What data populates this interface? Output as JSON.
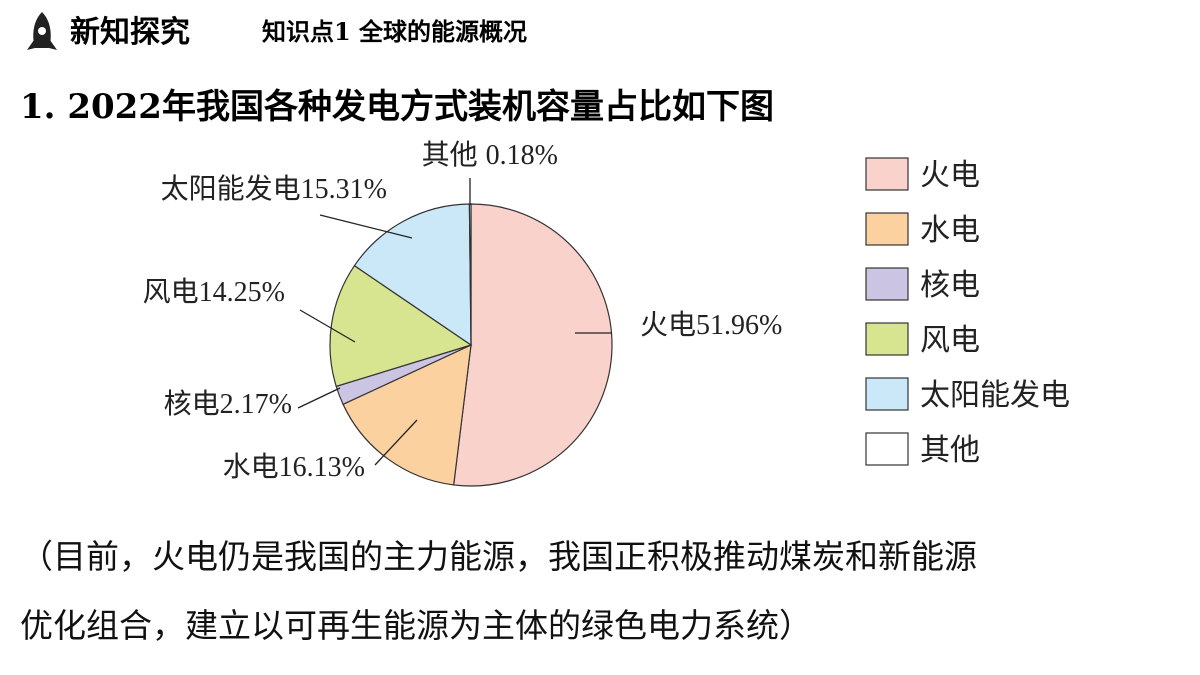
{
  "header": {
    "section": "新知探究",
    "topic": "知识点1  全球的能源概况"
  },
  "chart_data": {
    "type": "pie",
    "title": "1. 2022年我国各种发电方式装机容量占比如下图",
    "categories": [
      "火电",
      "水电",
      "核电",
      "风电",
      "太阳能发电",
      "其他"
    ],
    "values": [
      51.96,
      16.13,
      2.17,
      14.25,
      15.31,
      0.18
    ],
    "value_labels": [
      "51.96%",
      "16.13%",
      "2.17%",
      "14.25%",
      "15.31%",
      "0.18%"
    ],
    "colors": [
      "#f9d3cb",
      "#fcd1a0",
      "#cbc4e2",
      "#d7e490",
      "#cae8f8",
      "#ffffff"
    ],
    "legend": "right"
  },
  "note": [
    "（目前，火电仍是我国的主力能源，我国正积极推动煤炭和新能源",
    "优化组合，建立以可再生能源为主体的绿色电力系统）"
  ]
}
